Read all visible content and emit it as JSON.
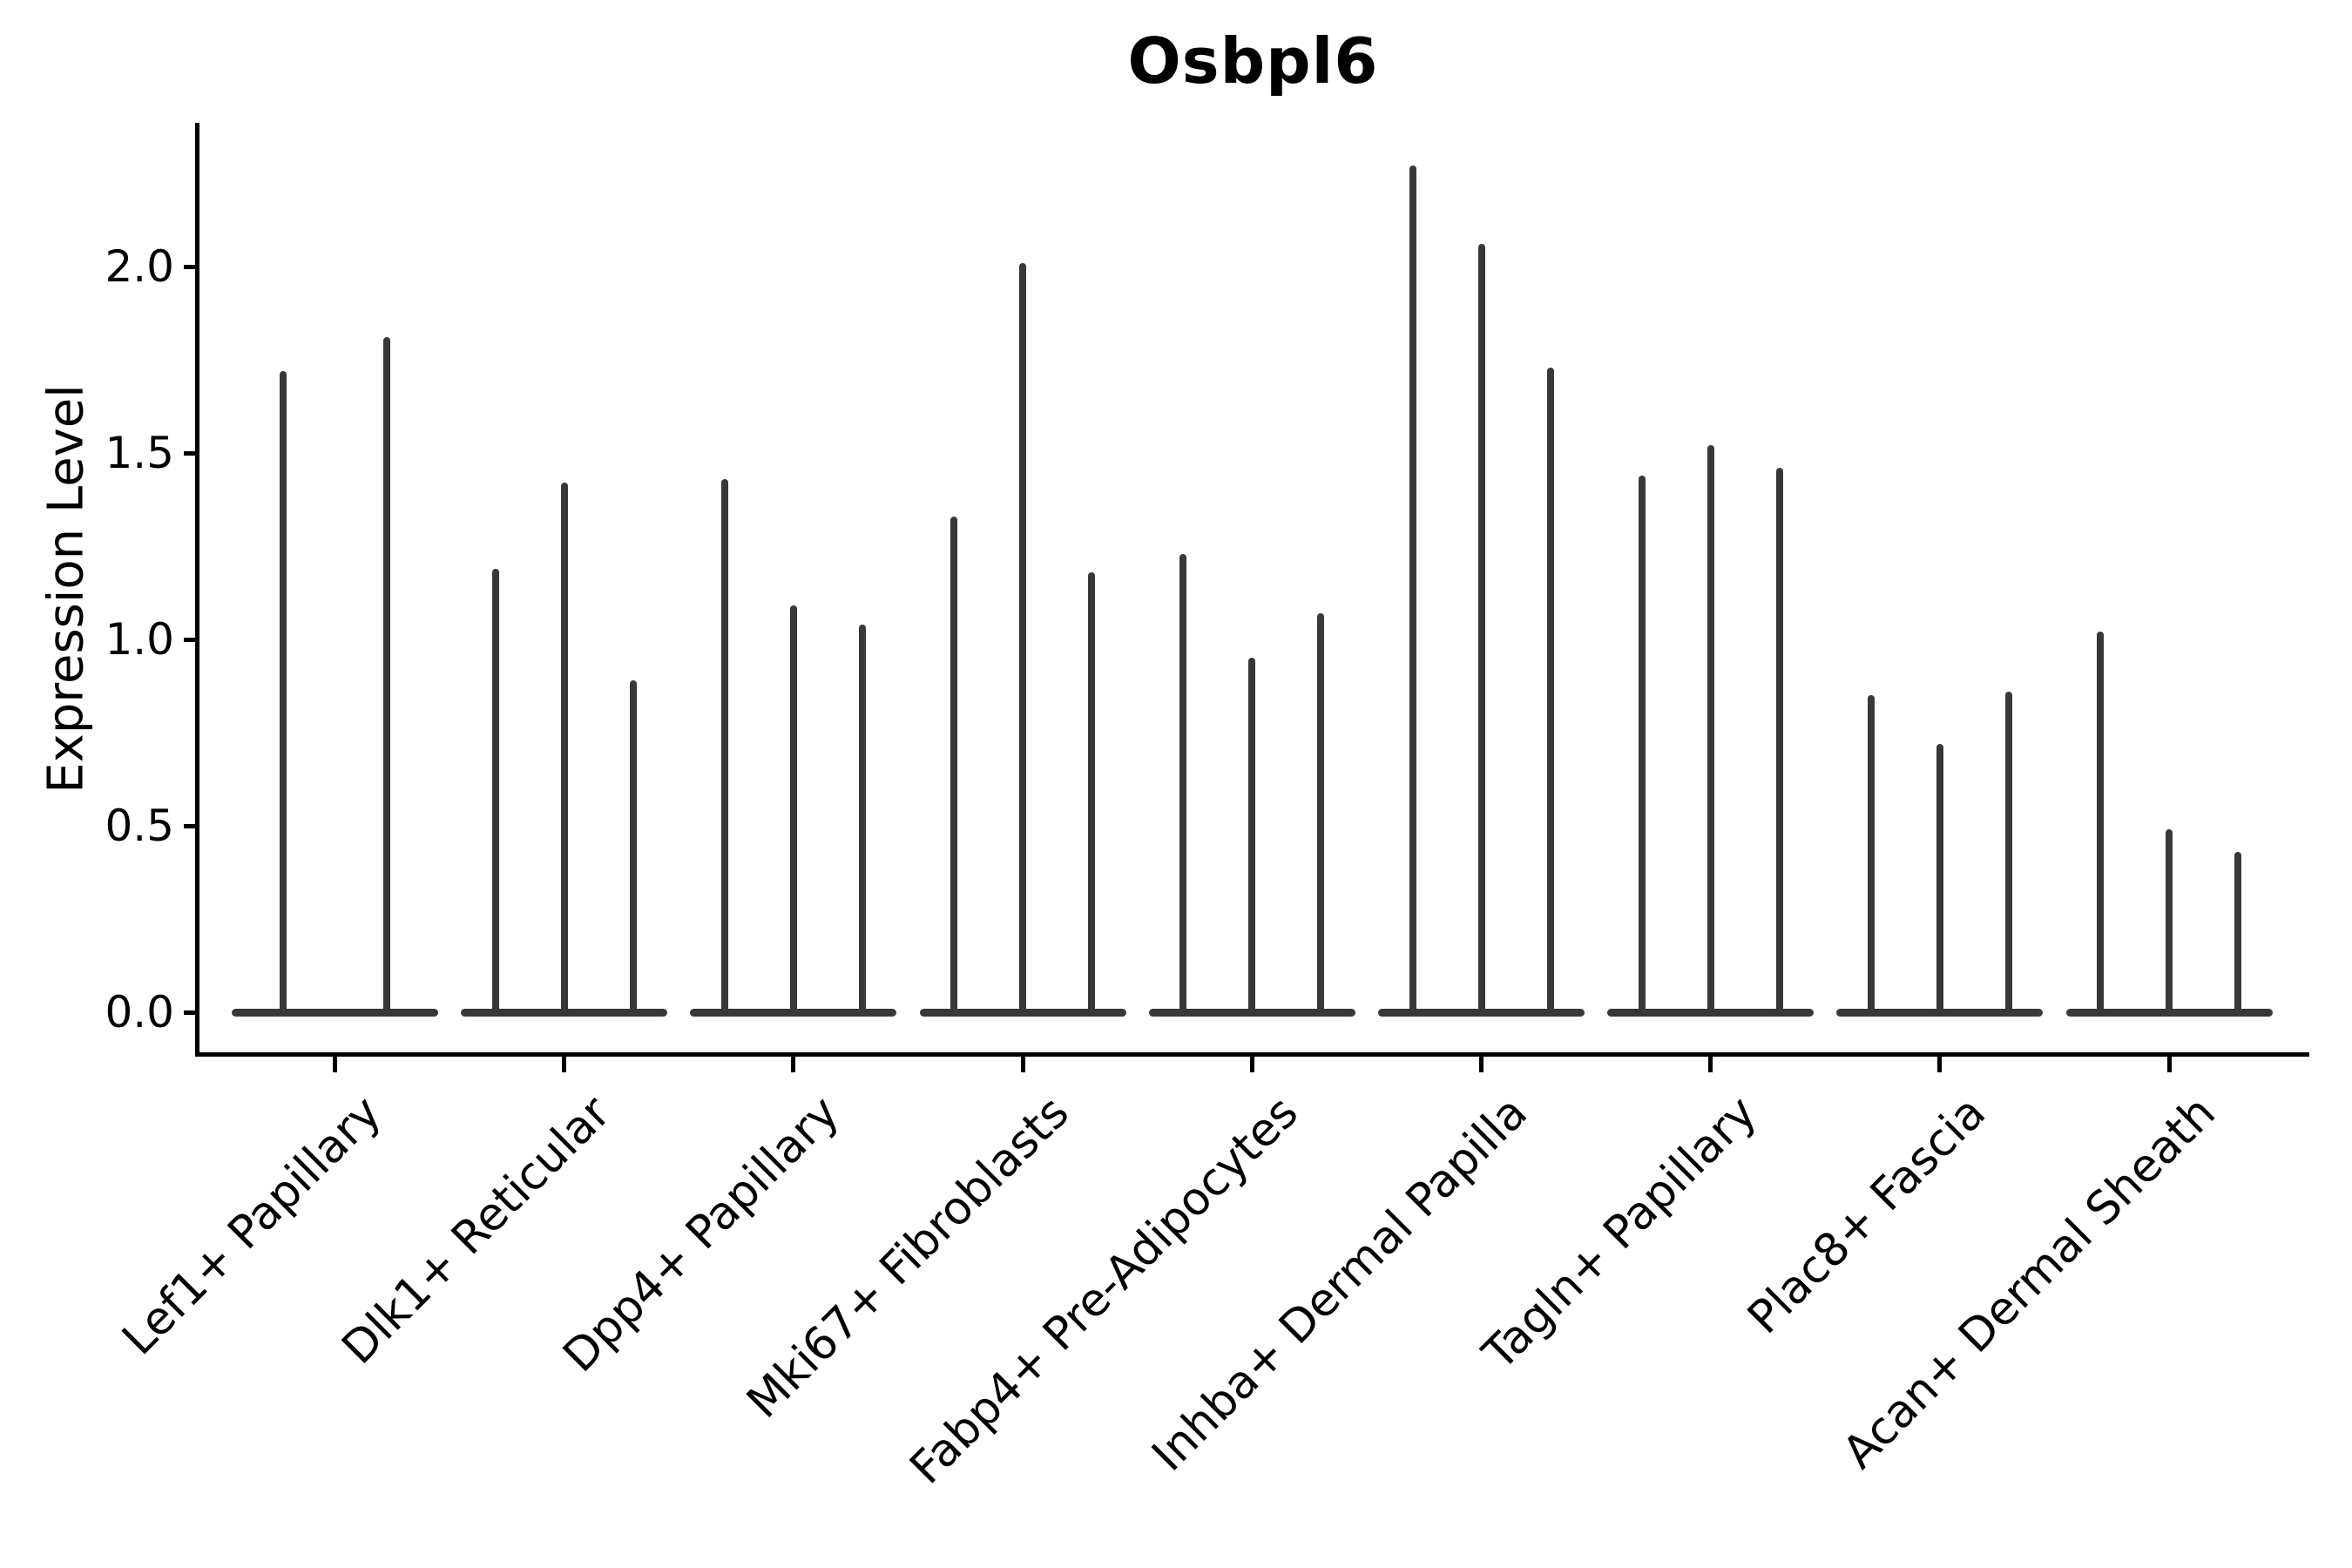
{
  "chart_data": {
    "type": "violin",
    "title": "Osbpl6",
    "ylabel": "Expression Level",
    "xlabel": "",
    "ytick_labels": [
      "0.0",
      "0.5",
      "1.0",
      "1.5",
      "2.0"
    ],
    "ylim": [
      -0.11,
      2.39
    ],
    "grid": false,
    "legend_position": "none",
    "violin_color": "#383838",
    "axis_color": "#000000",
    "background_color": "#ffffff",
    "categories": [
      "Lef1+ Papillary",
      "Dlk1+ Reticular",
      "Dpp4+ Papillary",
      "Mki67+ Fibroblasts",
      "Fabp4+ Pre-Adipocytes",
      "Inhba+ Dermal Papilla",
      "Tagln+ Papillary",
      "Plac8+ Fascia",
      "Acan+ Dermal Sheath"
    ],
    "groups": [
      {
        "category": "Lef1+ Papillary",
        "spike_values": [
          1.72,
          1.81
        ]
      },
      {
        "category": "Dlk1+ Reticular",
        "spike_values": [
          1.19,
          1.42,
          0.89
        ]
      },
      {
        "category": "Dpp4+ Papillary",
        "spike_values": [
          1.43,
          1.09,
          1.04
        ]
      },
      {
        "category": "Mki67+ Fibroblasts",
        "spike_values": [
          1.33,
          2.01,
          1.18
        ]
      },
      {
        "category": "Fabp4+ Pre-Adipocytes",
        "spike_values": [
          1.23,
          0.95,
          1.07
        ]
      },
      {
        "category": "Inhba+ Dermal Papilla",
        "spike_values": [
          2.27,
          2.06,
          1.73
        ]
      },
      {
        "category": "Tagln+ Papillary",
        "spike_values": [
          1.44,
          1.52,
          1.46
        ]
      },
      {
        "category": "Plac8+ Fascia",
        "spike_values": [
          0.85,
          0.72,
          0.86
        ]
      },
      {
        "category": "Acan+ Dermal Sheath",
        "spike_values": [
          1.02,
          0.49,
          0.43
        ]
      }
    ],
    "violins_collapse_to_zero_base": true
  }
}
